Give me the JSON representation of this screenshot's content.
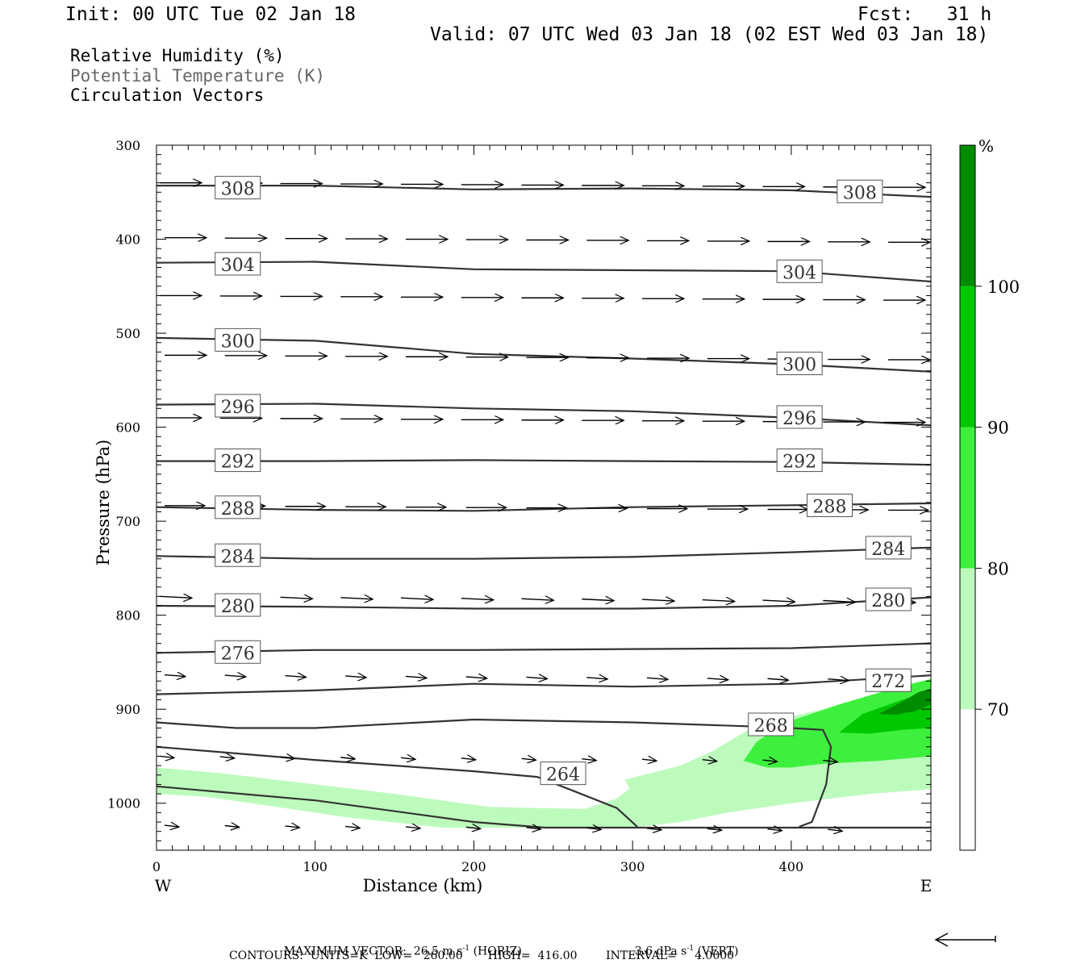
{
  "header": {
    "init": "Init: 00 UTC Tue 02 Jan 18",
    "fcst": "Fcst:   31 h",
    "valid": "Valid: 07 UTC Wed 03 Jan 18 (02 EST Wed 03 Jan 18)"
  },
  "titles": {
    "rh": "Relative Humidity (%)",
    "theta": "Potential Temperature (K)",
    "vectors": "Circulation Vectors"
  },
  "footer": {
    "max_vector_label": "MAXIMUM VECTOR:",
    "horiz": "26.5 m s",
    "horiz_exp": "-1",
    "horiz_tag": "(HORIZ)",
    "vert": "3.6 dPa s",
    "vert_exp": "-1",
    "vert_tag": "(VERT)",
    "contours": "CONTOURS:  UNITS=K  LOW=   260.00       HIGH=  416.00        INTERVAL=     4.0000"
  },
  "colors": {
    "rh_70": "#bdfbbd",
    "rh_80": "#3ef03e",
    "rh_90": "#00c800",
    "rh_100": "#008c00",
    "contour": "#333333",
    "vector": "#000000"
  },
  "chart_data": {
    "type": "cross-section",
    "xlabel": "Distance (km)",
    "ylabel": "Pressure (hPa)",
    "xlim": [
      0,
      488
    ],
    "ylim": [
      1050,
      300
    ],
    "x_ticks": [
      0,
      100,
      200,
      300,
      400
    ],
    "y_ticks": [
      300,
      400,
      500,
      600,
      700,
      800,
      900,
      1000
    ],
    "x_end_labels": {
      "left": "W",
      "right": "E"
    },
    "colorbar": {
      "unit": "%",
      "levels": [
        70,
        80,
        90,
        100
      ],
      "labels": [
        "70",
        "80",
        "90",
        "100"
      ]
    },
    "theta_contours": [
      {
        "value": 308,
        "label": "308",
        "points": [
          [
            0,
            343
          ],
          [
            100,
            343
          ],
          [
            200,
            347
          ],
          [
            300,
            346
          ],
          [
            400,
            348
          ],
          [
            488,
            355
          ]
        ],
        "labels_at": [
          [
            38,
            346
          ],
          [
            430,
            350
          ]
        ]
      },
      {
        "value": 304,
        "label": "304",
        "points": [
          [
            0,
            425
          ],
          [
            100,
            424
          ],
          [
            200,
            432
          ],
          [
            300,
            433
          ],
          [
            400,
            434
          ],
          [
            488,
            445
          ]
        ],
        "labels_at": [
          [
            38,
            427
          ],
          [
            392,
            435
          ]
        ]
      },
      {
        "value": 300,
        "label": "300",
        "points": [
          [
            0,
            505
          ],
          [
            100,
            508
          ],
          [
            150,
            515
          ],
          [
            200,
            522
          ],
          [
            300,
            527
          ],
          [
            400,
            533
          ],
          [
            488,
            541
          ]
        ],
        "labels_at": [
          [
            38,
            508
          ],
          [
            392,
            533
          ]
        ]
      },
      {
        "value": 296,
        "label": "296",
        "points": [
          [
            0,
            576
          ],
          [
            100,
            575
          ],
          [
            200,
            580
          ],
          [
            300,
            583
          ],
          [
            400,
            590
          ],
          [
            488,
            598
          ]
        ],
        "labels_at": [
          [
            38,
            578
          ],
          [
            392,
            590
          ]
        ]
      },
      {
        "value": 292,
        "label": "292",
        "points": [
          [
            0,
            636
          ],
          [
            100,
            636
          ],
          [
            200,
            635
          ],
          [
            300,
            636
          ],
          [
            400,
            637
          ],
          [
            488,
            640
          ]
        ],
        "labels_at": [
          [
            38,
            636
          ],
          [
            392,
            636
          ]
        ]
      },
      {
        "value": 288,
        "label": "288",
        "points": [
          [
            0,
            685
          ],
          [
            100,
            688
          ],
          [
            200,
            689
          ],
          [
            300,
            685
          ],
          [
            400,
            683
          ],
          [
            488,
            681
          ]
        ],
        "labels_at": [
          [
            38,
            686
          ],
          [
            411,
            684
          ]
        ]
      },
      {
        "value": 284,
        "label": "284",
        "points": [
          [
            0,
            737
          ],
          [
            100,
            740
          ],
          [
            200,
            740
          ],
          [
            300,
            738
          ],
          [
            400,
            733
          ],
          [
            488,
            728
          ]
        ],
        "labels_at": [
          [
            38,
            737
          ],
          [
            448,
            729
          ]
        ]
      },
      {
        "value": 280,
        "label": "280",
        "points": [
          [
            0,
            790
          ],
          [
            100,
            791
          ],
          [
            200,
            793
          ],
          [
            300,
            793
          ],
          [
            400,
            790
          ],
          [
            488,
            781
          ]
        ],
        "labels_at": [
          [
            38,
            790
          ],
          [
            448,
            784
          ]
        ]
      },
      {
        "value": 276,
        "label": "276",
        "points": [
          [
            0,
            840
          ],
          [
            100,
            837
          ],
          [
            200,
            837
          ],
          [
            300,
            836
          ],
          [
            400,
            835
          ],
          [
            488,
            830
          ]
        ],
        "labels_at": [
          [
            38,
            840
          ]
        ]
      },
      {
        "value": 272,
        "label": "272",
        "points": [
          [
            0,
            884
          ],
          [
            100,
            880
          ],
          [
            200,
            873
          ],
          [
            300,
            876
          ],
          [
            400,
            873
          ],
          [
            488,
            864
          ]
        ],
        "labels_at": [
          [
            448,
            870
          ]
        ]
      },
      {
        "value": 268,
        "label": "268",
        "points": [
          [
            0,
            914
          ],
          [
            50,
            920
          ],
          [
            100,
            920
          ],
          [
            200,
            911
          ],
          [
            300,
            914
          ],
          [
            370,
            918
          ],
          [
            400,
            920
          ],
          [
            420,
            922
          ],
          [
            425,
            940
          ],
          [
            422,
            980
          ],
          [
            413,
            1020
          ],
          [
            405,
            1025
          ]
        ],
        "labels_at": [
          [
            374,
            917
          ]
        ]
      },
      {
        "value": 264,
        "label": "264",
        "points": [
          [
            0,
            940
          ],
          [
            100,
            954
          ],
          [
            200,
            966
          ],
          [
            240,
            972
          ],
          [
            260,
            985
          ],
          [
            290,
            1005
          ],
          [
            303,
            1025
          ]
        ],
        "labels_at": [
          [
            243,
            969
          ]
        ]
      },
      {
        "value": 260,
        "label": "",
        "points": [
          [
            0,
            982
          ],
          [
            100,
            997
          ],
          [
            200,
            1020
          ],
          [
            245,
            1026
          ],
          [
            300,
            1026
          ],
          [
            488,
            1026
          ]
        ],
        "labels_at": []
      }
    ],
    "rh_regions": [
      {
        "level": "70",
        "description": "near-surface moist layer in the west and deep moist region in the east"
      },
      {
        "level": "80",
        "description": "moist core between 370 and 488 km, 870-960 hPa"
      },
      {
        "level": "90",
        "description": "900-950 hPa near east boundary"
      },
      {
        "level": "100",
        "description": "thin saturated patch near 460-488 km, 880-920 hPa"
      }
    ],
    "vector_rows_hPa": [
      340,
      395,
      460,
      520,
      590,
      680,
      780,
      860,
      950,
      1020
    ],
    "vector_x_km": [
      0,
      38,
      76,
      114,
      152,
      190,
      228,
      266,
      304,
      342,
      380,
      418,
      456
    ],
    "vector_desc": "westerly flow strengthening with height"
  }
}
